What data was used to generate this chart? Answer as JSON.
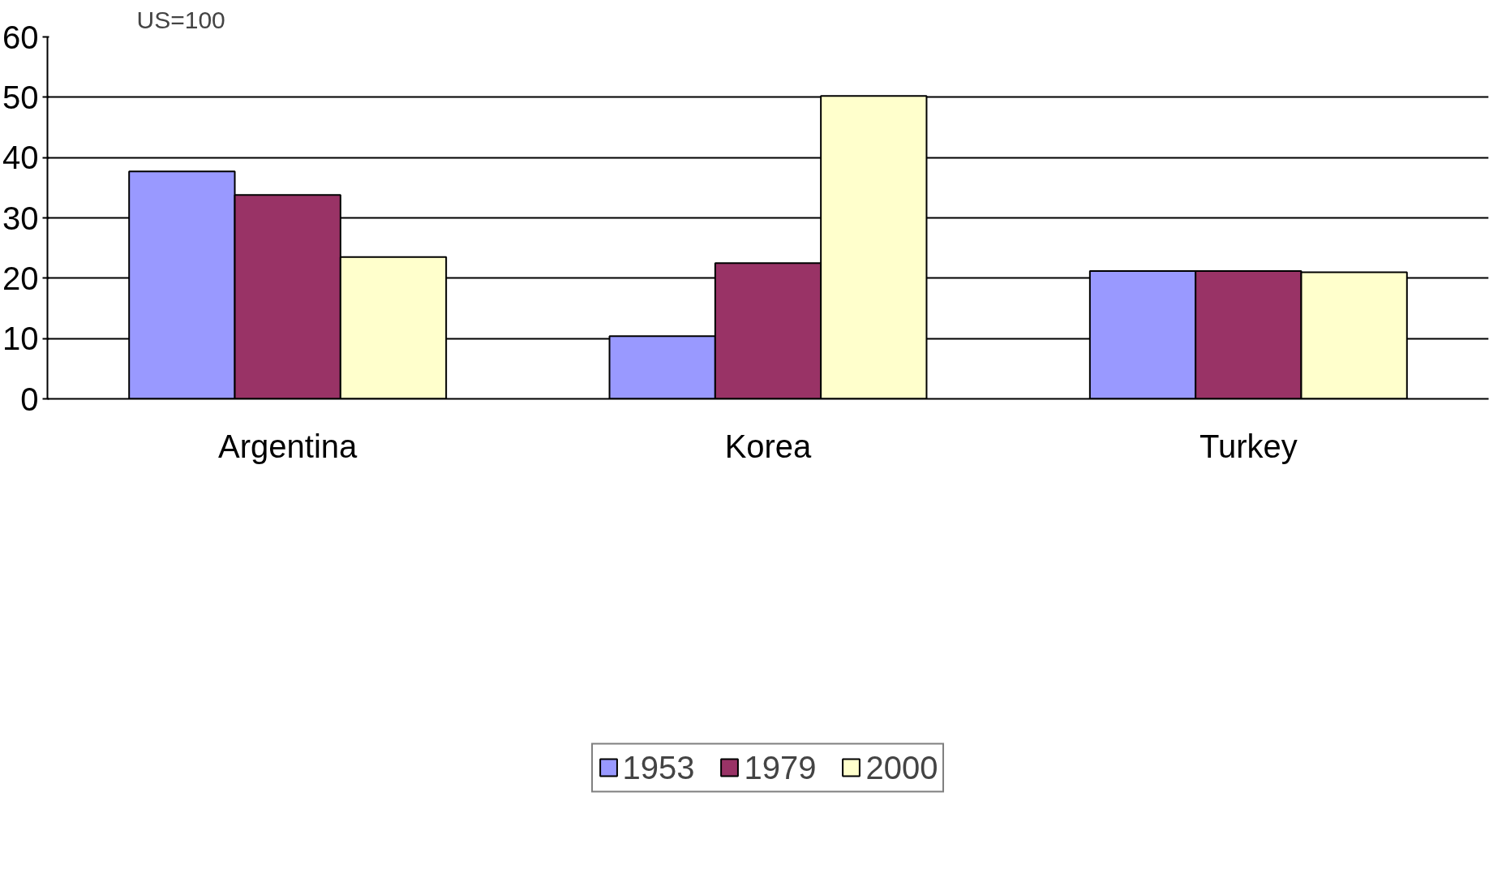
{
  "chart_data": {
    "type": "bar",
    "ylabel": "US=100",
    "categories": [
      "Argentina",
      "Korea",
      "Turkey"
    ],
    "series": [
      {
        "name": "1953",
        "color": "#9999ff",
        "values": [
          37.7,
          10.4,
          21.2
        ]
      },
      {
        "name": "1979",
        "color": "#993366",
        "values": [
          33.8,
          22.5,
          21.2
        ]
      },
      {
        "name": "2000",
        "color": "#ffffcc",
        "values": [
          23.5,
          50.2,
          21.0
        ]
      }
    ],
    "ylim": [
      0,
      60
    ],
    "yticks": [
      0,
      10,
      20,
      30,
      40,
      50,
      60
    ],
    "grid": "y",
    "legend": "bottom"
  }
}
